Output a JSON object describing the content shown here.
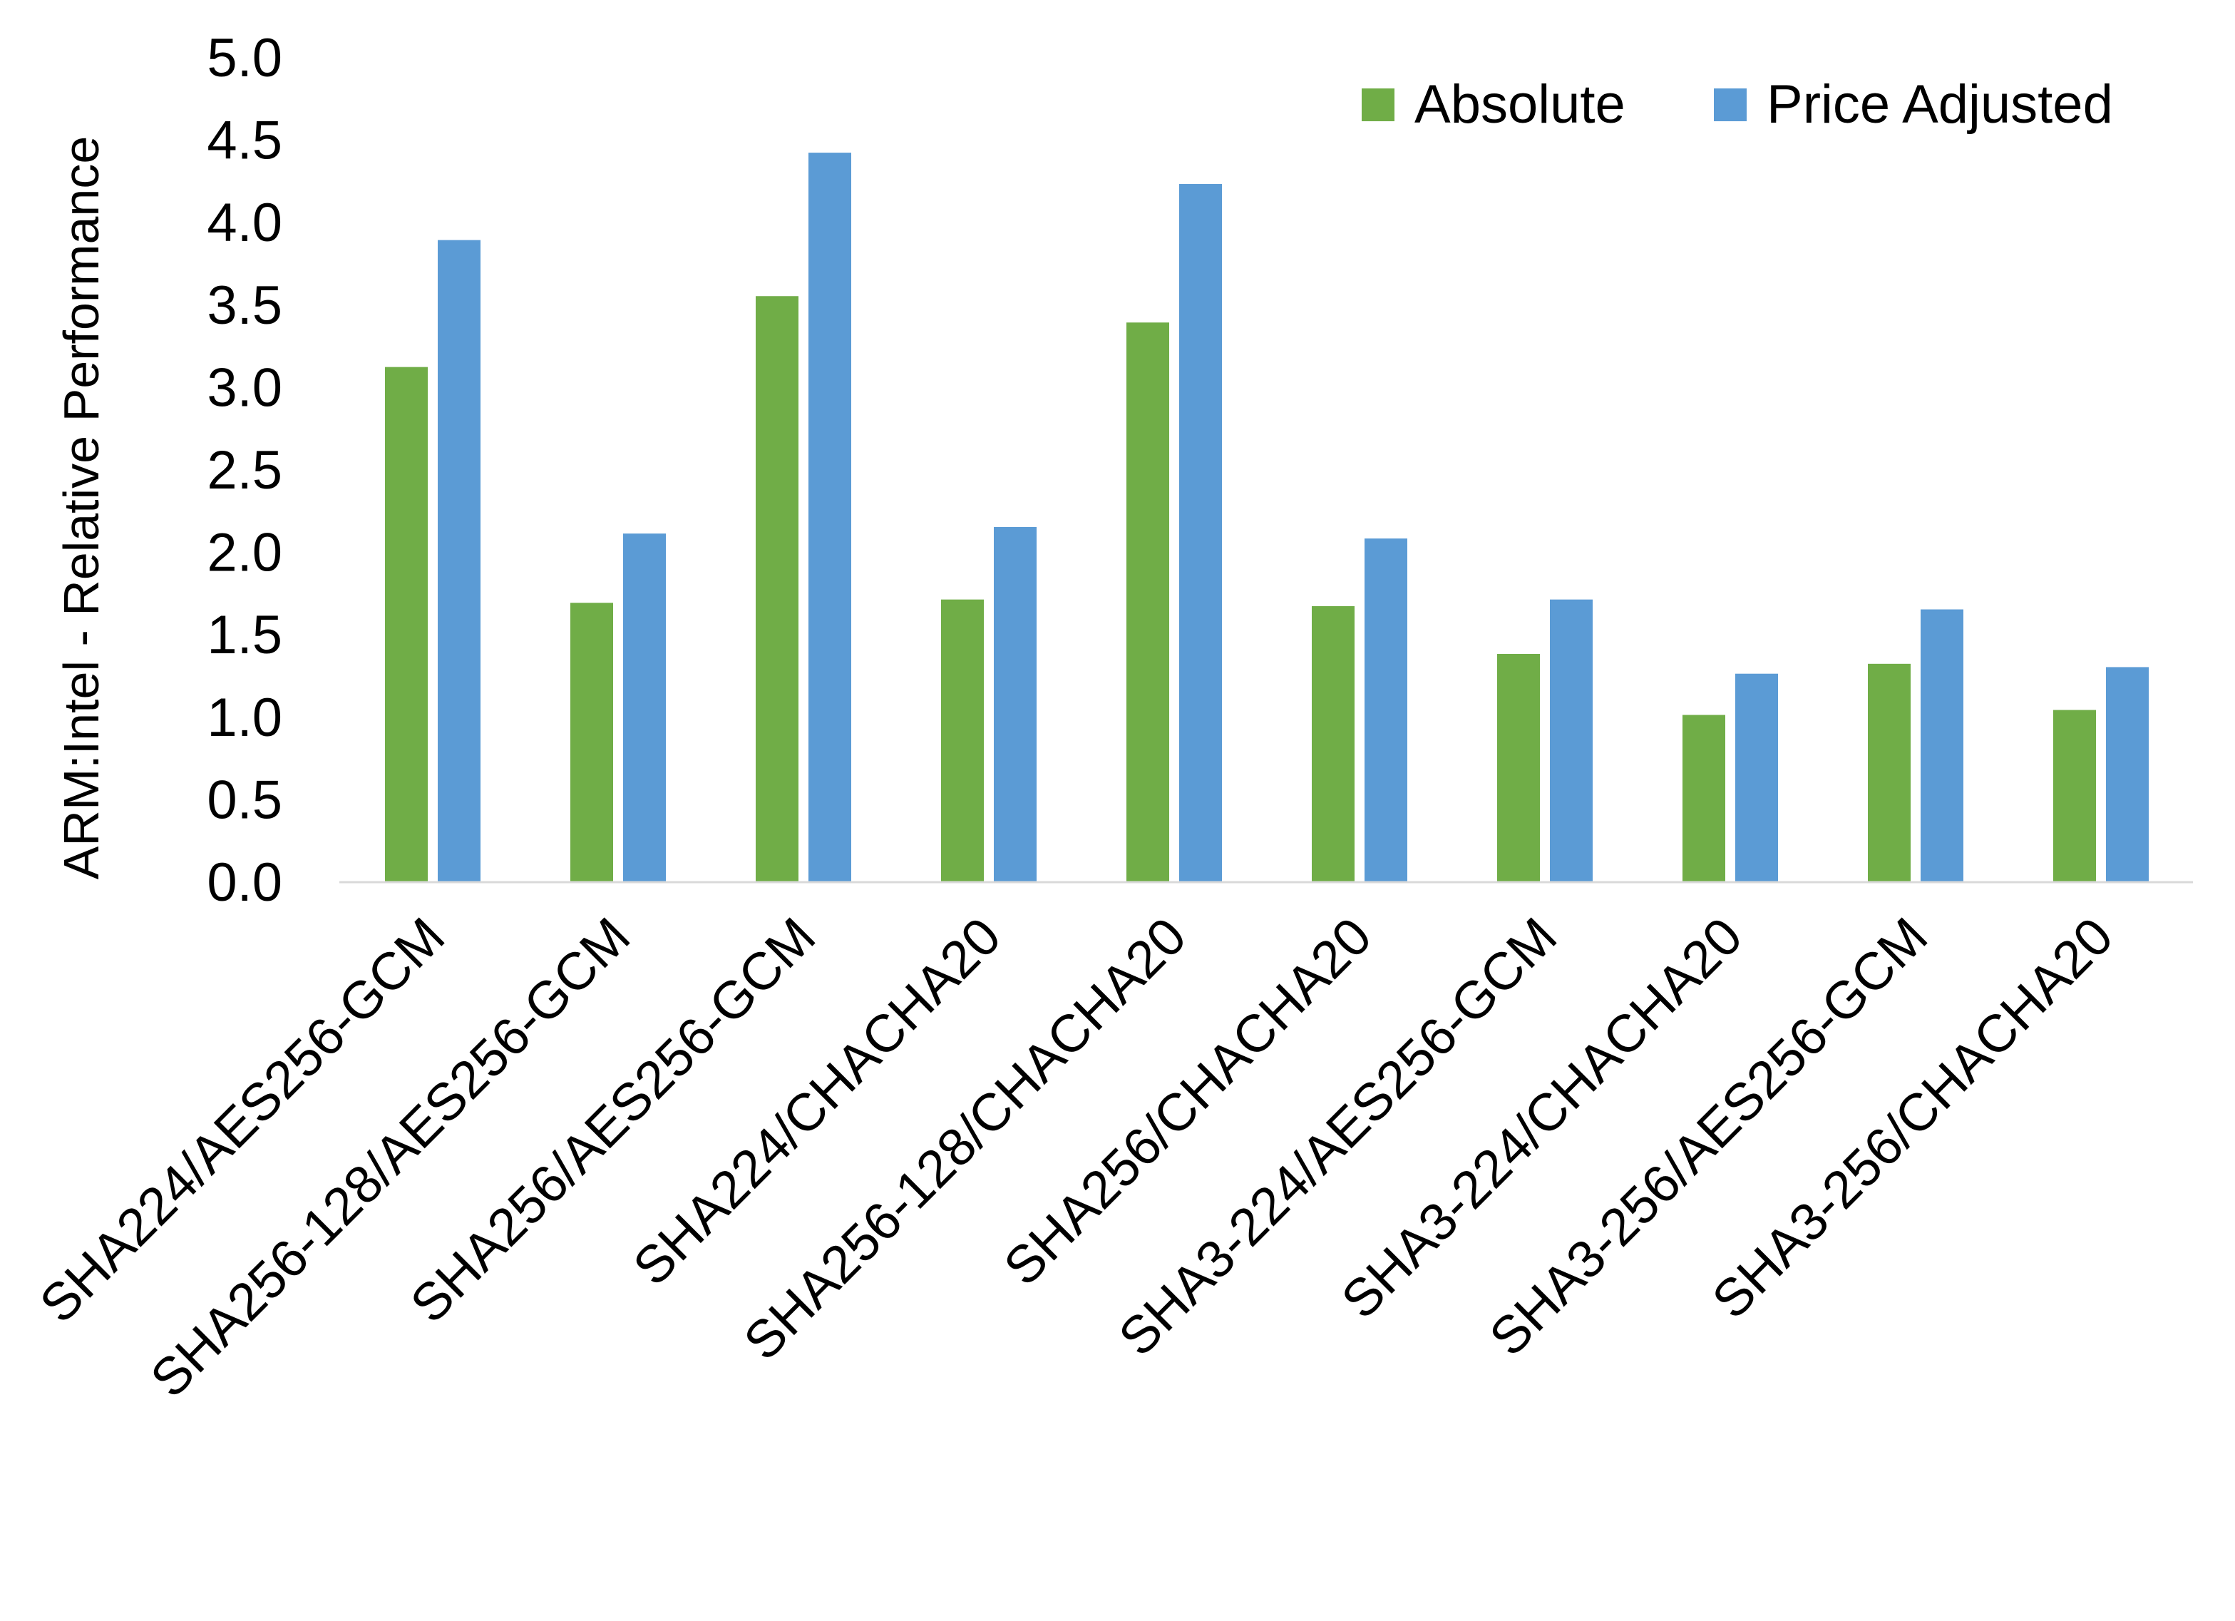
{
  "chart_data": {
    "type": "bar",
    "title": "",
    "xlabel": "",
    "ylabel": "ARM:Intel - Relative Performance",
    "ylim": [
      0,
      5.0
    ],
    "yticks": [
      "0.0",
      "0.5",
      "1.0",
      "1.5",
      "2.0",
      "2.5",
      "3.0",
      "3.5",
      "4.0",
      "4.5",
      "5.0"
    ],
    "grid": false,
    "legend_position": "top-right",
    "categories": [
      "SHA224/AES256-GCM",
      "SHA256-128/AES256-GCM",
      "SHA256/AES256-GCM",
      "SHA224/CHACHA20",
      "SHA256-128/CHACHA20",
      "SHA256/CHACHA20",
      "SHA3-224/AES256-GCM",
      "SHA3-224/CHACHA20",
      "SHA3-256/AES256-GCM",
      "SHA3-256/CHACHA20"
    ],
    "series": [
      {
        "name": "Absolute",
        "color": "#70AD47",
        "values": [
          3.12,
          1.69,
          3.55,
          1.71,
          3.39,
          1.67,
          1.38,
          1.01,
          1.32,
          1.04
        ]
      },
      {
        "name": "Price Adjusted",
        "color": "#5B9BD5",
        "values": [
          3.89,
          2.11,
          4.42,
          2.15,
          4.23,
          2.08,
          1.71,
          1.26,
          1.65,
          1.3
        ]
      }
    ]
  }
}
